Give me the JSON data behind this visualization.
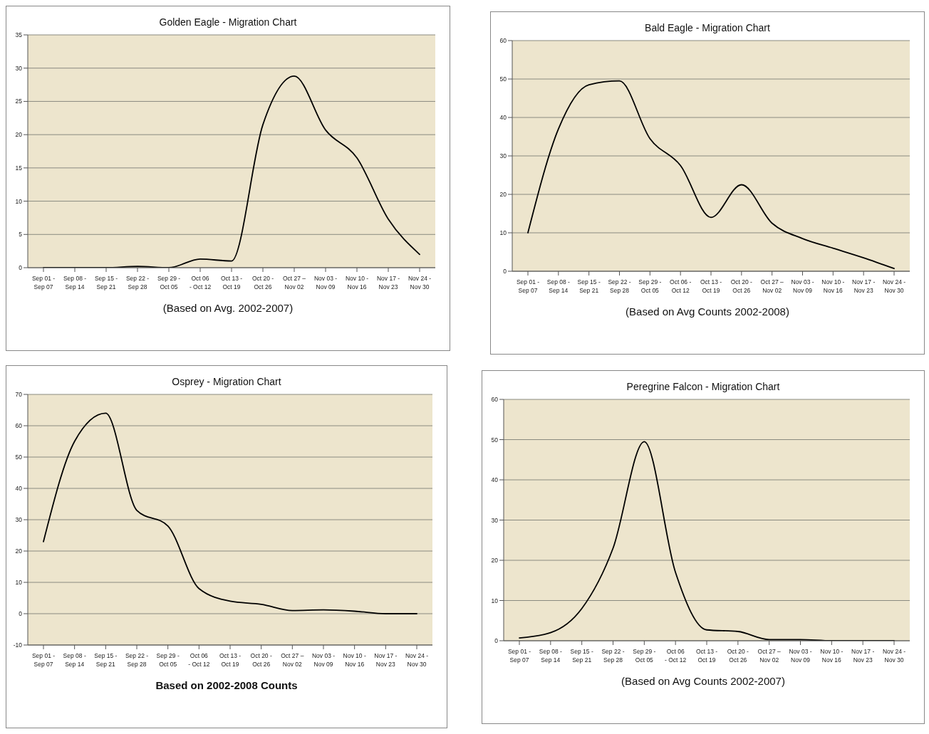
{
  "chart_data": [
    {
      "type": "line",
      "title": "Golden Eagle - Migration Chart",
      "categories": [
        "Sep 01 -\nSep 07",
        "Sep 08 -\nSep 14",
        "Sep 15 -\nSep 21",
        "Sep 22 -\nSep 28",
        "Sep 29 -\nOct 05",
        "Oct  06\n- Oct 12",
        "Oct 13 -\nOct 19",
        "Oct 20 -\nOct 26",
        "Oct 27 –\nNov 02",
        "Nov 03 -\nNov 09",
        "Nov 10 -\nNov 16",
        "Nov 17 -\nNov 23",
        "Nov 24 -\nNov 30"
      ],
      "values": [
        0,
        0,
        0,
        0.2,
        0,
        1.3,
        1,
        21.5,
        28.8,
        20.7,
        16.5,
        7.3,
        2
      ],
      "color": "#000000",
      "ylim": [
        0,
        35
      ],
      "yticks": [
        0,
        5,
        10,
        15,
        20,
        25,
        30,
        35
      ],
      "grid": "y",
      "annotations": [
        "(Based on Avg. 2002-2007)"
      ]
    },
    {
      "type": "line",
      "title": "Bald Eagle - Migration Chart",
      "categories": [
        "Sep 01 -\nSep 07",
        "Sep 08 -\nSep 14",
        "Sep 15 -\nSep 21",
        "Sep 22 -\nSep 28",
        "Sep 29 -\nOct 05",
        "Oct 06 -\nOct 12",
        "Oct 13 -\nOct 19",
        "Oct 20 -\nOct 26",
        "Oct 27 –\nNov 02",
        "Nov 03 -\nNov 09",
        "Nov 10 -\nNov 16",
        "Nov 17 -\nNov 23",
        "Nov 24 -\nNov 30"
      ],
      "values": [
        10,
        37,
        48.5,
        49.5,
        34.5,
        27.5,
        14,
        22.5,
        12.5,
        8.5,
        6,
        3.5,
        0.7
      ],
      "color": "#000000",
      "ylim": [
        0,
        60
      ],
      "yticks": [
        0,
        10,
        20,
        30,
        40,
        50,
        60
      ],
      "grid": "y",
      "annotations": [
        "(Based on Avg Counts 2002-2008)"
      ]
    },
    {
      "type": "line",
      "title": "Osprey - Migration Chart",
      "categories": [
        "Sep 01 -\nSep 07",
        "Sep 08 -\nSep 14",
        "Sep 15 -\nSep 21",
        "Sep 22 -\nSep 28",
        "Sep 29 -\nOct 05",
        "Oct  06\n- Oct 12",
        "Oct 13 -\nOct 19",
        "Oct 20 -\nOct 26",
        "Oct 27 –\nNov 02",
        "Nov 03 -\nNov 09",
        "Nov 10 -\nNov 16",
        "Nov 17 -\nNov 23",
        "Nov 24 -\nNov 30"
      ],
      "values": [
        23,
        55,
        64,
        33,
        28,
        8,
        4,
        3,
        1,
        1.2,
        0.8,
        0,
        0
      ],
      "color": "#000000",
      "ylim": [
        -10,
        70
      ],
      "yticks": [
        -10,
        0,
        10,
        20,
        30,
        40,
        50,
        60,
        70
      ],
      "grid": "y",
      "annotations": [
        "Based on 2002-2008 Counts"
      ]
    },
    {
      "type": "line",
      "title": "Peregrine Falcon - Migration Chart",
      "categories": [
        "Sep 01 -\nSep 07",
        "Sep 08 -\nSep 14",
        "Sep 15 -\nSep 21",
        "Sep 22 -\nSep 28",
        "Sep 29 -\nOct 05",
        "Oct  06\n- Oct 12",
        "Oct 13 -\nOct 19",
        "Oct 20 -\nOct 26",
        "Oct 27 –\nNov 02",
        "Nov 03 -\nNov 09",
        "Nov 10 -\nNov 16",
        "Nov 17 -\nNov 23",
        "Nov 24 -\nNov 30"
      ],
      "values": [
        0.7,
        2,
        8,
        23,
        49.5,
        17,
        2.7,
        2.3,
        0.3,
        0.3,
        0,
        0,
        0
      ],
      "color": "#000000",
      "ylim": [
        0,
        60
      ],
      "yticks": [
        0,
        10,
        20,
        30,
        40,
        50,
        60
      ],
      "grid": "y",
      "annotations": [
        "(Based on Avg Counts 2002-2007)"
      ]
    }
  ]
}
